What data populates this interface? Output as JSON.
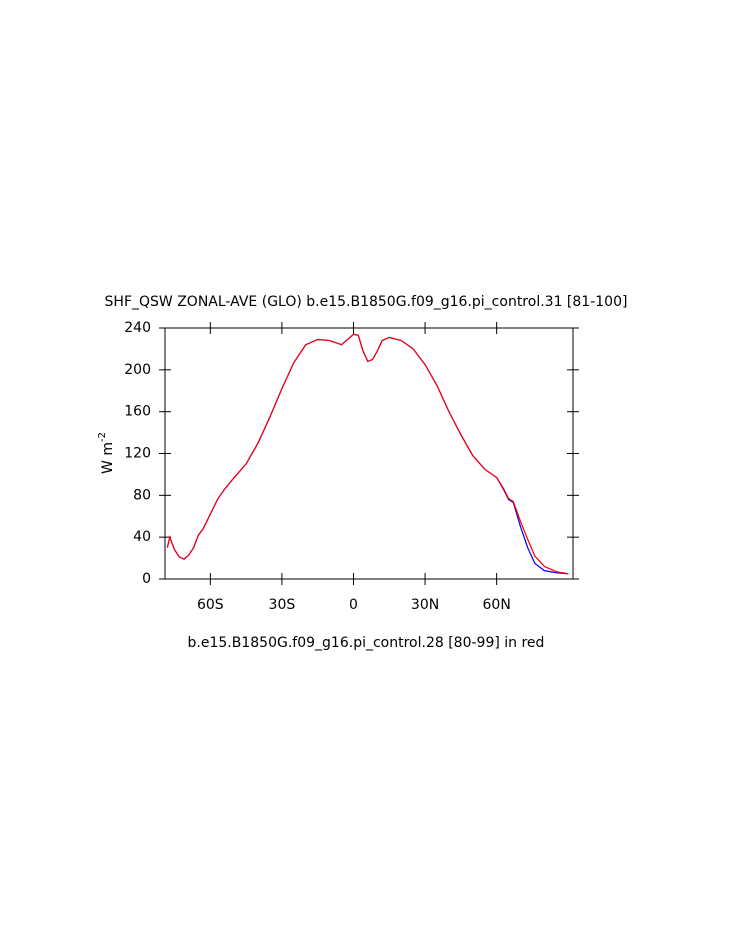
{
  "chart_data": {
    "type": "line",
    "title": "SHF_QSW ZONAL-AVE (GLO) b.e15.B1850G.f09_g16.pi_control.31 [81-100]",
    "ylabel": "W m",
    "ylabel_exponent": "-2",
    "annotation": "b.e15.B1850G.f09_g16.pi_control.28 [80-99] in red",
    "x": [
      -78,
      -77,
      -75,
      -73,
      -71,
      -69,
      -67,
      -65,
      -63,
      -60,
      -57,
      -54,
      -50,
      -45,
      -40,
      -35,
      -30,
      -25,
      -20,
      -15,
      -10,
      -5,
      -2,
      0,
      2,
      4,
      6,
      8,
      10,
      12,
      15,
      20,
      25,
      30,
      35,
      40,
      45,
      50,
      55,
      60,
      63,
      65,
      67,
      70,
      73,
      76,
      80,
      85,
      90
    ],
    "series": [
      {
        "color": "#0000ff",
        "values": [
          30,
          40,
          28,
          21,
          19,
          23,
          30,
          42,
          48,
          62,
          76,
          86,
          97,
          110,
          130,
          155,
          182,
          207,
          224,
          229,
          228,
          224,
          230,
          234,
          233,
          218,
          208,
          210,
          218,
          228,
          231,
          228,
          220,
          205,
          185,
          160,
          138,
          118,
          105,
          97,
          85,
          76,
          73,
          50,
          30,
          15,
          8,
          6,
          5
        ]
      },
      {
        "color": "#ff0000",
        "values": [
          30,
          40,
          28,
          21,
          19,
          23,
          30,
          42,
          48,
          62,
          76,
          86,
          97,
          110,
          130,
          155,
          182,
          207,
          224,
          229,
          228,
          224,
          230,
          234,
          233,
          218,
          208,
          210,
          218,
          228,
          231,
          228,
          220,
          205,
          185,
          160,
          138,
          118,
          105,
          97,
          86,
          77,
          74,
          55,
          38,
          22,
          12,
          7,
          5
        ]
      }
    ],
    "xlim": [
      -79,
      92
    ],
    "xticks": [
      {
        "value": -60,
        "label": "60S"
      },
      {
        "value": -30,
        "label": "30S"
      },
      0,
      {
        "value": 30,
        "label": "30N"
      },
      {
        "value": 60,
        "label": "60N"
      }
    ],
    "ylim": [
      0,
      240
    ],
    "yticks": [
      0,
      40,
      80,
      120,
      160,
      200,
      240
    ]
  }
}
